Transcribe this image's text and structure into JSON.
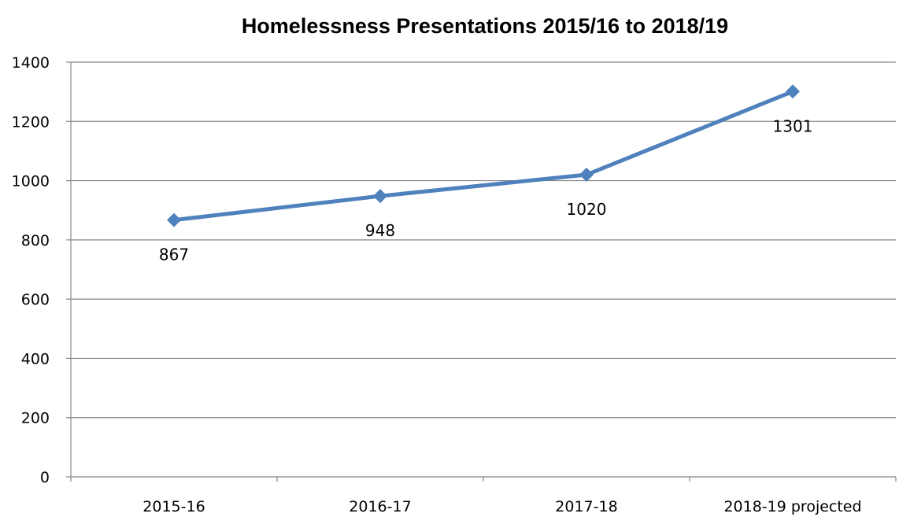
{
  "chart_data": {
    "type": "line",
    "title": "Homelessness Presentations 2015/16 to 2018/19",
    "xlabel": "",
    "ylabel": "",
    "categories": [
      "2015-16",
      "2016-17",
      "2017-18",
      "2018-19 projected"
    ],
    "series": [
      {
        "values": [
          867,
          948,
          1020,
          1301
        ],
        "color": "#4f81bd",
        "marker": "diamond",
        "data_labels": [
          "867",
          "948",
          "1020",
          "1301"
        ]
      }
    ],
    "ylim": [
      0,
      1400
    ],
    "yticks": [
      0,
      200,
      400,
      600,
      800,
      1000,
      1200,
      1400
    ],
    "ytick_labels": [
      "0",
      "200",
      "400",
      "600",
      "800",
      "1000",
      "1200",
      "1400"
    ],
    "grid": true,
    "legend": "none"
  }
}
